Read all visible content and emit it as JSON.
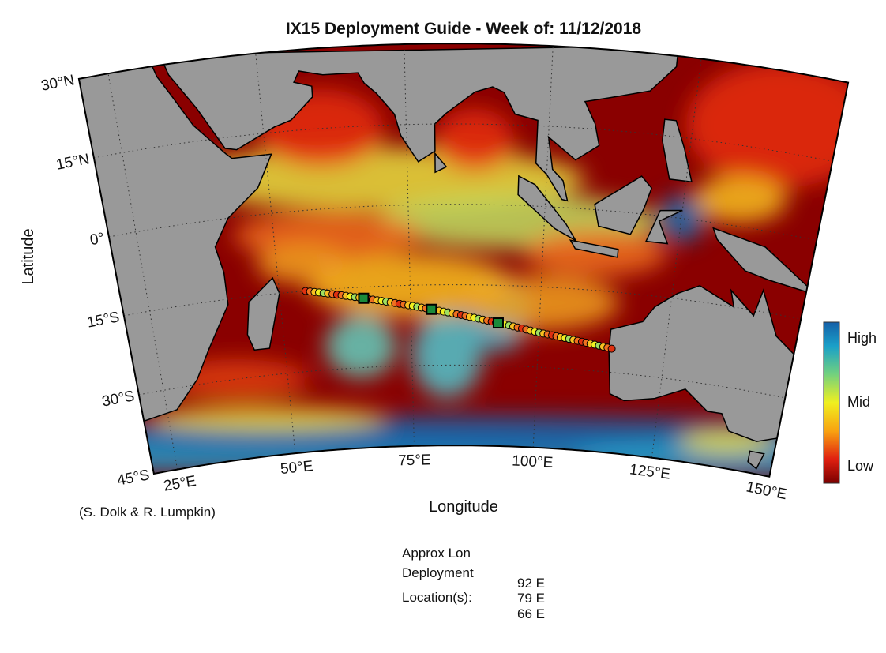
{
  "map": {
    "title": "IX15 Deployment Guide - Week of: 11/12/2018",
    "xlabel": "Longitude",
    "ylabel": "Latitude",
    "lonlim": [
      20,
      150
    ],
    "latlim": [
      -45,
      30
    ],
    "lonticks": [
      {
        "value": 25,
        "label": "25°E"
      },
      {
        "value": 50,
        "label": "50°E"
      },
      {
        "value": 75,
        "label": "75°E"
      },
      {
        "value": 100,
        "label": "100°E"
      },
      {
        "value": 125,
        "label": "125°E"
      },
      {
        "value": 150,
        "label": "150°E"
      }
    ],
    "latticks": [
      {
        "value": 30,
        "label": "30°N"
      },
      {
        "value": 15,
        "label": "15°N"
      },
      {
        "value": 0,
        "label": "0°"
      },
      {
        "value": -15,
        "label": "15°S"
      },
      {
        "value": -30,
        "label": "30°S"
      },
      {
        "value": -45,
        "label": "45°S"
      }
    ],
    "colorbar": [
      "High",
      "Mid",
      "Low"
    ],
    "credit": "(S. Dolk & R. Lumpkin)"
  },
  "deployment": {
    "heading": [
      "Approx Lon",
      "Deployment",
      "Location(s):"
    ],
    "locations": [
      "92 E",
      "79 E",
      "66 E"
    ]
  }
}
